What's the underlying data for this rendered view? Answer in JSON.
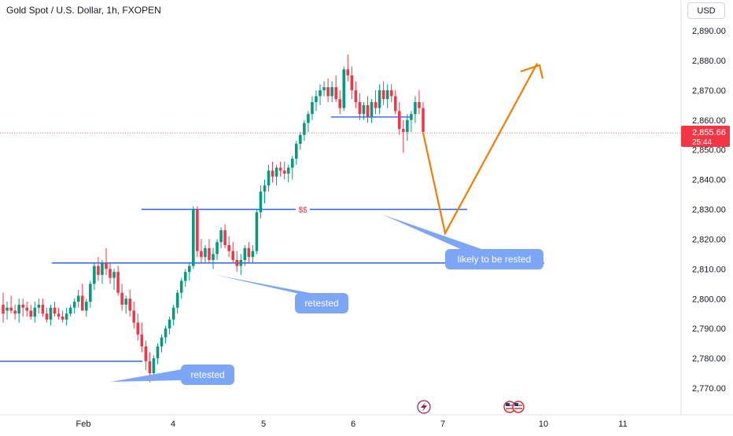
{
  "header": {
    "symbol_title": "Gold Spot / U.S. Dollar, 1h, FXOPEN",
    "currency": "USD"
  },
  "price_badge": {
    "price": "2,855.66",
    "countdown": "25:44",
    "color": "#f23645"
  },
  "colors": {
    "up": "#089981",
    "down": "#f23645",
    "level_line": "#2962ff",
    "arrow": "#f57c00",
    "callout": "#7ea6f6"
  },
  "icons": [
    "lightning-icon",
    "us-flag-calendar-icon"
  ],
  "chart_data": {
    "type": "candlestick",
    "title": "Gold Spot / U.S. Dollar, 1h, FXOPEN",
    "y_axis": {
      "ticks": [
        2770,
        2780,
        2790,
        2800,
        2810,
        2820,
        2830,
        2840,
        2850,
        2860,
        2870,
        2880,
        2890
      ],
      "tick_labels": [
        "2,770.00",
        "2,780.00",
        "2,790.00",
        "2,800.00",
        "2,810.00",
        "2,820.00",
        "2,830.00",
        "2,840.00",
        "2,850.00",
        "2,860.00",
        "2,870.00",
        "2,880.00",
        "2,890.00"
      ],
      "range": [
        2764,
        2894
      ]
    },
    "x_axis": {
      "tick_labels": [
        "Feb",
        "4",
        "5",
        "6",
        "7",
        "10",
        "11"
      ]
    },
    "candles_ohlc": [
      [
        2798,
        2802,
        2792,
        2795
      ],
      [
        2796,
        2799,
        2793,
        2797
      ],
      [
        2797,
        2801,
        2795,
        2796
      ],
      [
        2796,
        2798,
        2793,
        2795
      ],
      [
        2795,
        2800,
        2792,
        2798
      ],
      [
        2798,
        2800,
        2794,
        2797
      ],
      [
        2797,
        2799,
        2794,
        2796
      ],
      [
        2796,
        2798,
        2793,
        2794
      ],
      [
        2794,
        2799,
        2792,
        2797
      ],
      [
        2797,
        2800,
        2795,
        2798
      ],
      [
        2798,
        2800,
        2794,
        2795
      ],
      [
        2795,
        2797,
        2792,
        2793
      ],
      [
        2793,
        2798,
        2791,
        2797
      ],
      [
        2797,
        2799,
        2794,
        2795
      ],
      [
        2795,
        2797,
        2793,
        2794
      ],
      [
        2794,
        2796,
        2792,
        2793
      ],
      [
        2793,
        2797,
        2791,
        2795
      ],
      [
        2795,
        2798,
        2794,
        2797
      ],
      [
        2797,
        2800,
        2795,
        2799
      ],
      [
        2799,
        2803,
        2797,
        2801
      ],
      [
        2801,
        2805,
        2799,
        2796
      ],
      [
        2796,
        2800,
        2794,
        2799
      ],
      [
        2799,
        2806,
        2797,
        2805
      ],
      [
        2805,
        2812,
        2803,
        2811
      ],
      [
        2811,
        2814,
        2806,
        2808
      ],
      [
        2808,
        2813,
        2805,
        2812
      ],
      [
        2812,
        2817,
        2808,
        2810
      ],
      [
        2810,
        2812,
        2805,
        2807
      ],
      [
        2807,
        2810,
        2803,
        2809
      ],
      [
        2809,
        2811,
        2801,
        2802
      ],
      [
        2802,
        2805,
        2796,
        2798
      ],
      [
        2798,
        2801,
        2795,
        2800
      ],
      [
        2800,
        2803,
        2794,
        2796
      ],
      [
        2796,
        2799,
        2790,
        2792
      ],
      [
        2792,
        2795,
        2786,
        2788
      ],
      [
        2788,
        2792,
        2782,
        2784
      ],
      [
        2784,
        2786,
        2776,
        2779
      ],
      [
        2779,
        2782,
        2772,
        2775
      ],
      [
        2775,
        2781,
        2773,
        2780
      ],
      [
        2780,
        2785,
        2778,
        2784
      ],
      [
        2784,
        2788,
        2782,
        2787
      ],
      [
        2787,
        2791,
        2785,
        2790
      ],
      [
        2790,
        2794,
        2788,
        2793
      ],
      [
        2793,
        2798,
        2791,
        2797
      ],
      [
        2797,
        2803,
        2795,
        2802
      ],
      [
        2802,
        2807,
        2800,
        2806
      ],
      [
        2806,
        2810,
        2804,
        2809
      ],
      [
        2809,
        2812,
        2806,
        2811
      ],
      [
        2811,
        2831,
        2810,
        2830
      ],
      [
        2830,
        2831,
        2814,
        2816
      ],
      [
        2816,
        2820,
        2812,
        2814
      ],
      [
        2814,
        2818,
        2812,
        2817
      ],
      [
        2817,
        2820,
        2812,
        2813
      ],
      [
        2813,
        2817,
        2810,
        2815
      ],
      [
        2815,
        2820,
        2813,
        2819
      ],
      [
        2819,
        2824,
        2817,
        2823
      ],
      [
        2823,
        2825,
        2817,
        2818
      ],
      [
        2818,
        2821,
        2814,
        2816
      ],
      [
        2816,
        2819,
        2812,
        2813
      ],
      [
        2813,
        2816,
        2809,
        2811
      ],
      [
        2811,
        2815,
        2808,
        2813
      ],
      [
        2813,
        2818,
        2811,
        2817
      ],
      [
        2817,
        2819,
        2812,
        2814
      ],
      [
        2814,
        2818,
        2812,
        2816
      ],
      [
        2816,
        2830,
        2815,
        2829
      ],
      [
        2829,
        2838,
        2827,
        2836
      ],
      [
        2836,
        2840,
        2832,
        2838
      ],
      [
        2838,
        2845,
        2836,
        2843
      ],
      [
        2843,
        2846,
        2839,
        2841
      ],
      [
        2841,
        2845,
        2838,
        2844
      ],
      [
        2844,
        2846,
        2841,
        2843
      ],
      [
        2843,
        2846,
        2840,
        2842
      ],
      [
        2842,
        2845,
        2839,
        2844
      ],
      [
        2844,
        2848,
        2840,
        2847
      ],
      [
        2847,
        2853,
        2845,
        2852
      ],
      [
        2852,
        2856,
        2850,
        2855
      ],
      [
        2855,
        2860,
        2853,
        2859
      ],
      [
        2859,
        2863,
        2856,
        2862
      ],
      [
        2862,
        2868,
        2860,
        2866
      ],
      [
        2866,
        2870,
        2863,
        2868
      ],
      [
        2868,
        2872,
        2865,
        2870
      ],
      [
        2870,
        2873,
        2868,
        2871
      ],
      [
        2871,
        2874,
        2866,
        2868
      ],
      [
        2868,
        2873,
        2866,
        2871
      ],
      [
        2871,
        2875,
        2866,
        2867
      ],
      [
        2867,
        2870,
        2862,
        2864
      ],
      [
        2864,
        2878,
        2863,
        2877
      ],
      [
        2877,
        2882,
        2873,
        2875
      ],
      [
        2875,
        2878,
        2867,
        2870
      ],
      [
        2870,
        2873,
        2864,
        2866
      ],
      [
        2866,
        2869,
        2860,
        2862
      ],
      [
        2862,
        2866,
        2860,
        2865
      ],
      [
        2865,
        2868,
        2859,
        2861
      ],
      [
        2861,
        2867,
        2859,
        2866
      ],
      [
        2866,
        2870,
        2862,
        2864
      ],
      [
        2864,
        2872,
        2862,
        2870
      ],
      [
        2870,
        2873,
        2865,
        2867
      ],
      [
        2867,
        2872,
        2864,
        2870
      ],
      [
        2870,
        2872,
        2866,
        2868
      ],
      [
        2868,
        2870,
        2862,
        2863
      ],
      [
        2863,
        2866,
        2855,
        2857
      ],
      [
        2857,
        2860,
        2849,
        2856
      ],
      [
        2856,
        2862,
        2853,
        2860
      ],
      [
        2860,
        2863,
        2856,
        2862
      ],
      [
        2862,
        2868,
        2859,
        2866
      ],
      [
        2866,
        2870,
        2862,
        2864
      ],
      [
        2864,
        2866,
        2855,
        2856
      ]
    ],
    "annotations": {
      "horizontal_levels": [
        2830,
        2812,
        2779,
        2861
      ],
      "liquidity_label": "$$",
      "callouts": [
        "likely to be rested",
        "retested",
        "retested"
      ],
      "projected_path": [
        2855.66,
        2822,
        2879
      ]
    }
  }
}
